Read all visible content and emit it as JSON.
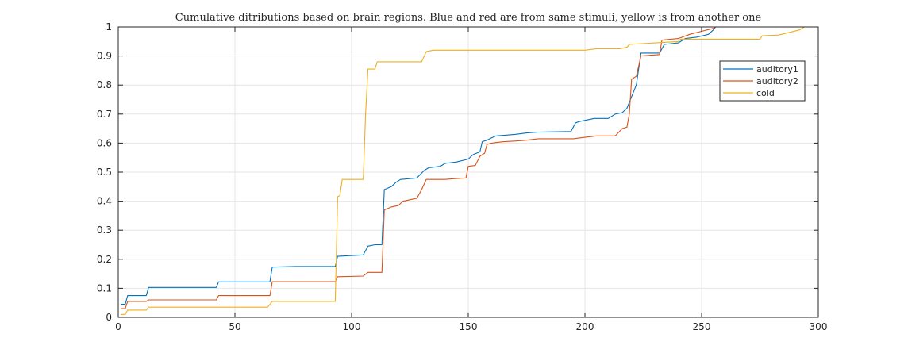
{
  "chart_data": {
    "type": "line",
    "title": "Cumulative ditributions based on brain regions. Blue and red are from same stimuli, yellow is from another one",
    "xlabel": "",
    "ylabel": "",
    "xlim": [
      0,
      300
    ],
    "ylim": [
      0,
      1
    ],
    "xticks": [
      0,
      50,
      100,
      150,
      200,
      250,
      300
    ],
    "yticks": [
      0,
      0.1,
      0.2,
      0.3,
      0.4,
      0.5,
      0.6,
      0.7,
      0.8,
      0.9,
      1
    ],
    "grid": true,
    "legend_position": "top-right",
    "series": [
      {
        "name": "auditory1",
        "color": "#0072BD",
        "x": [
          1,
          3,
          4,
          12,
          13,
          42,
          43,
          65,
          66,
          76,
          93,
          94,
          105,
          107,
          110,
          113,
          114,
          117,
          119,
          121,
          128,
          131,
          133,
          138,
          140,
          145,
          150,
          152,
          155,
          156,
          158,
          160,
          162,
          170,
          175,
          180,
          194,
          196,
          198,
          204,
          210,
          213,
          216,
          218,
          220,
          222,
          224,
          232,
          234,
          240,
          243,
          248,
          253,
          255,
          256,
          280,
          294
        ],
        "y": [
          0.045,
          0.045,
          0.075,
          0.075,
          0.103,
          0.103,
          0.122,
          0.122,
          0.173,
          0.175,
          0.175,
          0.21,
          0.215,
          0.245,
          0.25,
          0.25,
          0.44,
          0.45,
          0.465,
          0.475,
          0.48,
          0.505,
          0.515,
          0.52,
          0.53,
          0.535,
          0.545,
          0.56,
          0.57,
          0.605,
          0.61,
          0.618,
          0.625,
          0.63,
          0.635,
          0.638,
          0.64,
          0.67,
          0.675,
          0.685,
          0.685,
          0.7,
          0.705,
          0.72,
          0.76,
          0.8,
          0.91,
          0.91,
          0.94,
          0.945,
          0.96,
          0.965,
          0.975,
          0.99,
          1.0,
          1.0,
          1.0
        ]
      },
      {
        "name": "auditory2",
        "color": "#D95319",
        "x": [
          1,
          3,
          4,
          12,
          13,
          42,
          43,
          65,
          66,
          93,
          94,
          105,
          107,
          113,
          114,
          117,
          120,
          122,
          128,
          130,
          132,
          140,
          145,
          149,
          150,
          153,
          155,
          157,
          158,
          160,
          165,
          170,
          175,
          180,
          195,
          200,
          205,
          213,
          216,
          218,
          219,
          220,
          222,
          224,
          232,
          233,
          240,
          245,
          250,
          255,
          256,
          294
        ],
        "y": [
          0.03,
          0.03,
          0.055,
          0.055,
          0.06,
          0.06,
          0.075,
          0.075,
          0.123,
          0.123,
          0.14,
          0.142,
          0.155,
          0.155,
          0.37,
          0.38,
          0.385,
          0.4,
          0.41,
          0.44,
          0.475,
          0.475,
          0.478,
          0.48,
          0.52,
          0.523,
          0.555,
          0.565,
          0.595,
          0.6,
          0.605,
          0.607,
          0.61,
          0.615,
          0.615,
          0.62,
          0.625,
          0.625,
          0.65,
          0.655,
          0.7,
          0.82,
          0.83,
          0.9,
          0.905,
          0.955,
          0.96,
          0.975,
          0.985,
          0.995,
          1.0,
          1.0
        ]
      },
      {
        "name": "cold",
        "color": "#EDB120",
        "x": [
          1,
          3,
          4,
          12,
          13,
          42,
          43,
          64,
          66,
          93,
          94,
          95,
          96,
          105,
          106,
          107,
          110,
          111,
          130,
          132,
          135,
          180,
          200,
          205,
          215,
          218,
          219,
          230,
          240,
          241,
          275,
          276,
          283,
          292,
          294
        ],
        "y": [
          0.01,
          0.01,
          0.025,
          0.025,
          0.035,
          0.035,
          0.035,
          0.035,
          0.055,
          0.055,
          0.415,
          0.42,
          0.475,
          0.475,
          0.7,
          0.855,
          0.855,
          0.88,
          0.88,
          0.915,
          0.92,
          0.92,
          0.92,
          0.925,
          0.925,
          0.93,
          0.94,
          0.945,
          0.95,
          0.958,
          0.958,
          0.97,
          0.972,
          0.99,
          1.0
        ]
      }
    ]
  }
}
